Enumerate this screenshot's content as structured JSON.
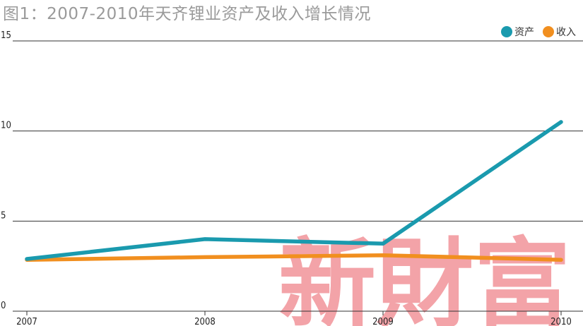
{
  "title": "图1：2007-2010年天齐锂业资产及收入增长情况",
  "watermark": "新財富",
  "colors": {
    "asset": "#1a9aae",
    "revenue": "#f18f1f",
    "grid": "#333333",
    "watermark": "#f3a3a8"
  },
  "chart_data": {
    "type": "line",
    "title": "图1：2007-2010年天齐锂业资产及收入增长情况",
    "xlabel": "",
    "ylabel": "",
    "categories": [
      "2007",
      "2008",
      "2009",
      "2010"
    ],
    "ylim": [
      0,
      15
    ],
    "yticks": [
      "0",
      "5",
      "10",
      "15"
    ],
    "grid": true,
    "legend": "top-right",
    "series": [
      {
        "name": "资产",
        "color": "#1a9aae",
        "values": [
          2.9,
          4.0,
          3.75,
          10.5
        ]
      },
      {
        "name": "收入",
        "color": "#f18f1f",
        "values": [
          2.85,
          3.0,
          3.1,
          2.85
        ]
      }
    ]
  }
}
